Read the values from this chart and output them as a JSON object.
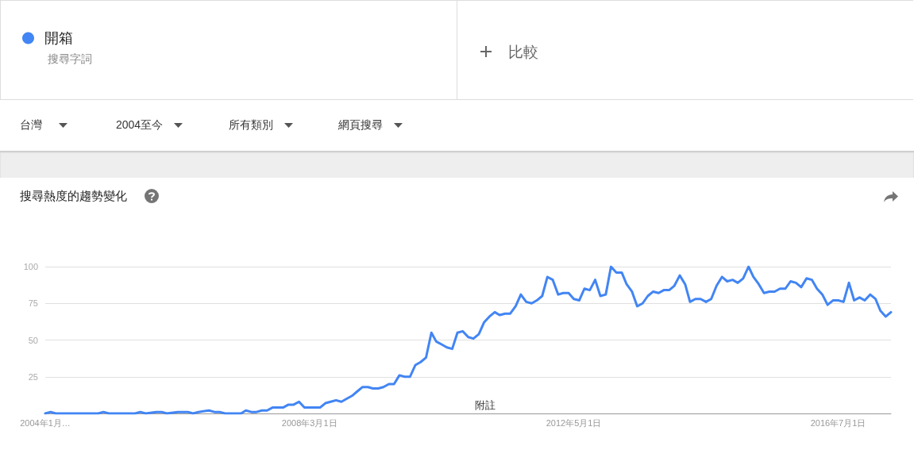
{
  "chart_data": {
    "type": "line",
    "title": "搜尋熱度的趨勢變化",
    "series": [
      {
        "name": "開箱",
        "color": "#4285f4",
        "x": [
          "2004-01",
          "2004-02",
          "2004-03",
          "2004-11",
          "2004-12",
          "2005-01",
          "2005-06",
          "2005-07",
          "2005-08",
          "2005-10",
          "2005-11",
          "2005-12",
          "2006-02",
          "2006-04",
          "2006-05",
          "2006-06",
          "2006-08",
          "2006-09",
          "2006-10",
          "2006-11",
          "2007-02",
          "2007-03",
          "2007-04",
          "2007-05",
          "2007-06",
          "2007-07",
          "2007-08",
          "2007-09",
          "2007-10",
          "2007-11",
          "2007-12",
          "2008-01",
          "2008-02",
          "2008-05",
          "2008-06",
          "2008-07",
          "2008-08",
          "2008-09",
          "2008-10",
          "2008-11",
          "2008-12",
          "2009-01",
          "2009-02",
          "2009-03",
          "2009-04",
          "2009-05",
          "2009-06",
          "2009-07",
          "2009-08",
          "2009-09",
          "2009-10",
          "2009-11",
          "2009-12",
          "2010-01",
          "2010-02",
          "2010-03",
          "2010-04",
          "2010-05",
          "2010-06",
          "2010-07",
          "2010-08",
          "2010-09",
          "2010-10",
          "2010-11",
          "2010-12",
          "2011-01",
          "2011-02",
          "2011-03",
          "2011-04",
          "2011-05",
          "2011-06",
          "2011-07",
          "2011-08",
          "2011-09",
          "2011-10",
          "2011-11",
          "2011-12",
          "2012-01",
          "2012-02",
          "2012-03",
          "2012-04",
          "2012-05",
          "2012-06",
          "2012-07",
          "2012-08",
          "2012-09",
          "2012-10",
          "2012-11",
          "2012-12",
          "2013-01",
          "2013-02",
          "2013-03",
          "2013-04",
          "2013-05",
          "2013-06",
          "2013-07",
          "2013-08",
          "2013-09",
          "2013-10",
          "2013-11",
          "2013-12",
          "2014-01",
          "2014-02",
          "2014-03",
          "2014-04",
          "2014-05",
          "2014-06",
          "2014-07",
          "2014-08",
          "2014-09",
          "2014-10",
          "2014-11",
          "2014-12",
          "2015-01",
          "2015-02",
          "2015-03",
          "2015-04",
          "2015-05",
          "2015-06",
          "2015-07",
          "2015-08",
          "2015-09",
          "2015-10",
          "2015-11",
          "2015-12",
          "2016-01",
          "2016-02",
          "2016-03",
          "2016-04",
          "2016-05",
          "2016-06",
          "2016-07",
          "2016-08",
          "2016-09",
          "2016-10",
          "2016-11",
          "2016-12",
          "2017-01",
          "2017-02",
          "2017-03",
          "2017-04",
          "2017-05"
        ],
        "values": [
          0,
          1,
          0,
          0,
          1,
          0,
          0,
          1,
          0,
          1,
          1,
          0,
          1,
          1,
          0,
          1,
          2,
          1,
          1,
          0,
          0,
          2,
          1,
          1,
          2,
          2,
          4,
          4,
          4,
          6,
          6,
          8,
          4,
          4,
          7,
          8,
          9,
          8,
          10,
          12,
          15,
          18,
          18,
          17,
          17,
          18,
          20,
          20,
          26,
          25,
          25,
          33,
          35,
          38,
          55,
          49,
          47,
          45,
          44,
          55,
          56,
          52,
          51,
          54,
          62,
          66,
          69,
          67,
          68,
          68,
          73,
          81,
          76,
          75,
          77,
          80,
          93,
          91,
          81,
          82,
          82,
          78,
          77,
          85,
          84,
          91,
          80,
          81,
          100,
          96,
          96,
          88,
          83,
          73,
          75,
          80,
          83,
          82,
          84,
          84,
          87,
          94,
          88,
          76,
          78,
          78,
          76,
          78,
          87,
          93,
          90,
          91,
          89,
          92,
          100,
          93,
          88,
          82,
          83,
          83,
          85,
          85,
          90,
          89,
          86,
          92,
          91,
          85,
          81,
          74,
          77,
          77,
          76,
          89,
          77,
          79,
          77,
          81,
          78,
          70,
          66,
          69
        ]
      }
    ],
    "xlim": [
      "2004-01",
      "2017-05"
    ],
    "xticks": [
      {
        "value": "2004-01-01",
        "label": "2004年1月…"
      },
      {
        "value": "2008-03-01",
        "label": "2008年3月1日"
      },
      {
        "value": "2012-05-01",
        "label": "2012年5月1日"
      },
      {
        "value": "2016-07-01",
        "label": "2016年7月1日"
      }
    ],
    "ylim": [
      0,
      100
    ],
    "yticks": [
      25,
      50,
      75,
      100
    ],
    "grid": "y",
    "legend": "top left",
    "marker": "none",
    "line_style": "solid",
    "annotations": [
      "搜尋字詞",
      "比較",
      "台灣",
      "2004至今",
      "所有類別",
      "網頁搜尋",
      "附註"
    ]
  }
}
